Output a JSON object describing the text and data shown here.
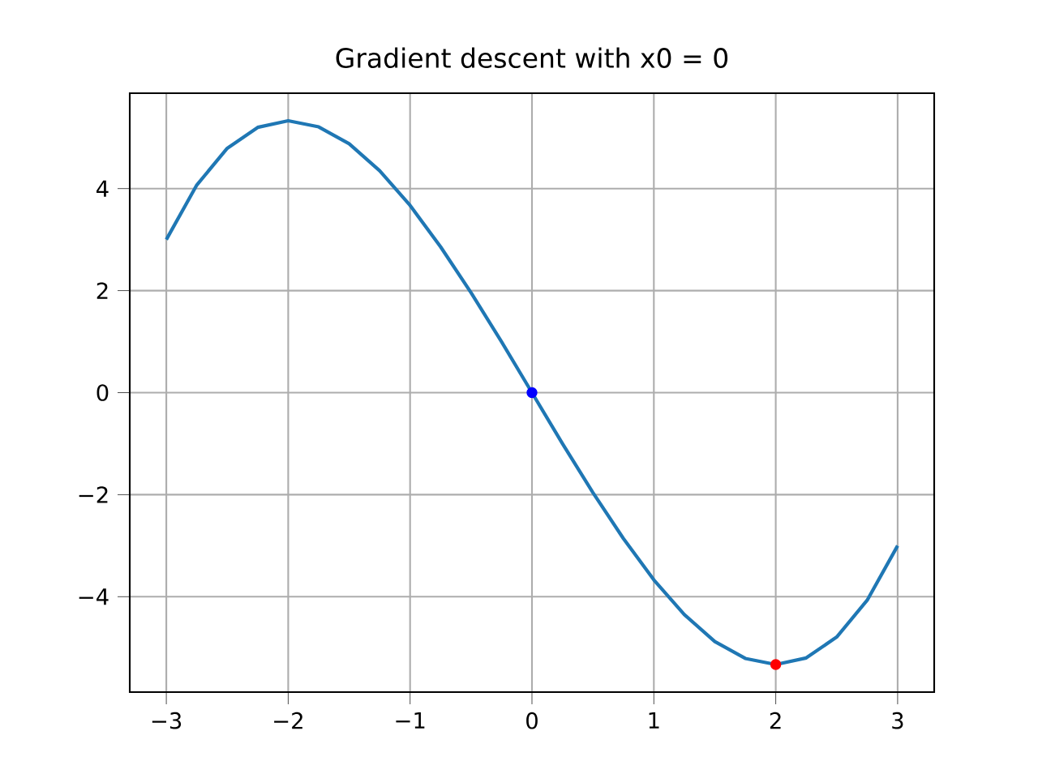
{
  "chart_data": {
    "type": "line",
    "title": "Gradient descent with x0 = 0",
    "xlim": [
      -3.3,
      3.3
    ],
    "ylim": [
      -5.87,
      5.87
    ],
    "xticks": [
      {
        "value": -3,
        "label": "−3"
      },
      {
        "value": -2,
        "label": "−2"
      },
      {
        "value": -1,
        "label": "−1"
      },
      0,
      1,
      2,
      3
    ],
    "yticks": [
      {
        "value": -4,
        "label": "−4"
      },
      {
        "value": -2,
        "label": "−2"
      },
      0,
      2,
      4
    ],
    "grid": true,
    "series": [
      {
        "marker": "none",
        "color": "#1f77b4",
        "x": [
          -3,
          -2.75,
          -2.5,
          -2.25,
          -2,
          -1.75,
          -1.5,
          -1.25,
          -1,
          -0.75,
          -0.5,
          -0.25,
          0,
          0.25,
          0.5,
          0.75,
          1,
          1.25,
          1.5,
          1.75,
          2,
          2.25,
          2.5,
          2.75,
          3
        ],
        "values": [
          3,
          4.07,
          4.79,
          5.2,
          5.33,
          5.21,
          4.88,
          4.35,
          3.67,
          2.86,
          1.96,
          1.0,
          0,
          -1.0,
          -1.96,
          -2.86,
          -3.67,
          -4.35,
          -4.88,
          -5.21,
          -5.33,
          -5.2,
          -4.79,
          -4.07,
          -3
        ]
      },
      {
        "type": "scatter",
        "marker": "circle",
        "color": "#0000ff",
        "x": [
          0
        ],
        "values": [
          0
        ]
      },
      {
        "type": "scatter",
        "marker": "circle",
        "color": "#ff0000",
        "x": [
          2
        ],
        "values": [
          -5.33
        ]
      }
    ]
  }
}
